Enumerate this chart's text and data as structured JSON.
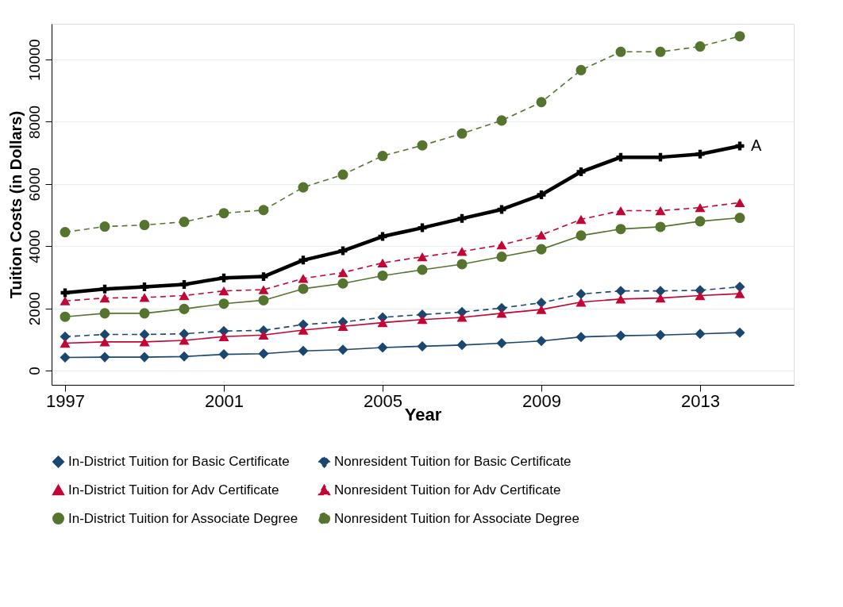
{
  "chart_data": {
    "type": "line",
    "xlabel": "Year",
    "ylabel": "Tuition Costs (in Dollars)",
    "x": [
      1997,
      1998,
      1999,
      2000,
      2001,
      2002,
      2003,
      2004,
      2005,
      2006,
      2007,
      2008,
      2009,
      2010,
      2011,
      2012,
      2013,
      2014
    ],
    "xlim": [
      1996.66,
      2015.36
    ],
    "xticks": [
      1997,
      2001,
      2005,
      2009,
      2013
    ],
    "ylim": [
      -460,
      11150
    ],
    "yticks": [
      0,
      2000,
      4000,
      6000,
      8000,
      10000
    ],
    "grid": "y",
    "legend": "bottom",
    "series": [
      {
        "name": "In-District Tuition for Basic Certificate",
        "color": "#1a476f",
        "marker": "diamond",
        "line_style": "solid",
        "values": [
          420,
          430,
          430,
          450,
          520,
          540,
          630,
          670,
          740,
          780,
          820,
          880,
          950,
          1080,
          1120,
          1140,
          1180,
          1220
        ]
      },
      {
        "name": "Nonresident Tuition for Basic Certificate",
        "color": "#1a476f",
        "marker": "diamond",
        "line_style": "dashed",
        "values": [
          1090,
          1160,
          1160,
          1180,
          1270,
          1290,
          1480,
          1560,
          1710,
          1800,
          1880,
          2010,
          2180,
          2460,
          2560,
          2560,
          2580,
          2690
        ]
      },
      {
        "name": "In-District Tuition for Adv Certificate",
        "color": "#c10534",
        "marker": "triangle",
        "line_style": "solid",
        "values": [
          880,
          920,
          920,
          970,
          1090,
          1140,
          1300,
          1420,
          1540,
          1640,
          1710,
          1840,
          1960,
          2200,
          2300,
          2330,
          2410,
          2470
        ]
      },
      {
        "name": "Nonresident Tuition for Adv Certificate",
        "color": "#c10534",
        "marker": "triangle",
        "line_style": "dashed",
        "values": [
          2240,
          2330,
          2350,
          2410,
          2560,
          2600,
          2960,
          3150,
          3460,
          3660,
          3830,
          4040,
          4360,
          4860,
          5140,
          5140,
          5240,
          5400
        ]
      },
      {
        "name": "In-District Tuition for Associate Degree",
        "color": "#55752f",
        "marker": "circle",
        "line_style": "solid",
        "values": [
          1730,
          1840,
          1840,
          1980,
          2150,
          2260,
          2630,
          2800,
          3050,
          3240,
          3420,
          3660,
          3900,
          4340,
          4550,
          4620,
          4800,
          4910
        ]
      },
      {
        "name": "Nonresident Tuition for Associate Degree",
        "color": "#55752f",
        "marker": "circle",
        "line_style": "dashed",
        "values": [
          4450,
          4630,
          4680,
          4780,
          5060,
          5160,
          5890,
          6300,
          6900,
          7240,
          7620,
          8040,
          8630,
          9660,
          10250,
          10250,
          10420,
          10750
        ]
      },
      {
        "color": "#000000",
        "marker": "cross",
        "line_style": "solid",
        "values": [
          2500,
          2620,
          2690,
          2770,
          2980,
          3020,
          3550,
          3850,
          4310,
          4590,
          4890,
          5180,
          5650,
          6390,
          6860,
          6860,
          6960,
          7220
        ]
      }
    ],
    "annotations": [
      {
        "text": "A",
        "x": 2014,
        "y": 7220
      }
    ]
  }
}
